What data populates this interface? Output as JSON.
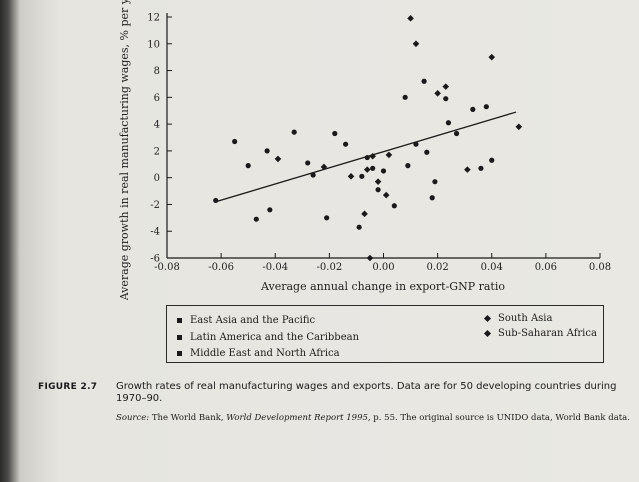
{
  "chart_data": {
    "type": "scatter",
    "title": "",
    "xlabel": "Average annual change in export-GNP ratio",
    "ylabel": "Average growth in real manufacturing wages, % per year",
    "xlim": [
      -0.08,
      0.08
    ],
    "ylim": [
      -6,
      12
    ],
    "x_ticks": [
      "-0.08",
      "-0.06",
      "-0.04",
      "-0.02",
      "0.00",
      "0.02",
      "0.04",
      "0.06",
      "0.08"
    ],
    "x_tick_values": [
      -0.08,
      -0.06,
      -0.04,
      -0.02,
      0.0,
      0.02,
      0.04,
      0.06,
      0.08
    ],
    "y_ticks": [
      "-6",
      "-4",
      "-2",
      "0",
      "2",
      "4",
      "6",
      "8",
      "10",
      "12"
    ],
    "y_tick_values": [
      -6,
      -4,
      -2,
      0,
      2,
      4,
      6,
      8,
      10,
      12
    ],
    "grid": false,
    "legend_position": "bottom",
    "series": [
      {
        "name": "East Asia and the Pacific",
        "marker": "circle",
        "points": [
          [
            -0.047,
            -3.1
          ],
          [
            -0.033,
            3.4
          ],
          [
            -0.021,
            -3.0
          ],
          [
            -0.009,
            -3.7
          ],
          [
            0.018,
            -1.5
          ],
          [
            0.019,
            -0.3
          ],
          [
            0.033,
            5.1
          ],
          [
            0.04,
            1.3
          ]
        ]
      },
      {
        "name": "Latin America and the Caribbean",
        "marker": "circle",
        "points": [
          [
            -0.055,
            2.7
          ],
          [
            -0.043,
            2.0
          ],
          [
            -0.028,
            1.1
          ],
          [
            -0.018,
            3.3
          ],
          [
            -0.014,
            2.5
          ],
          [
            -0.006,
            1.5
          ],
          [
            0.0,
            0.5
          ],
          [
            0.004,
            -2.1
          ],
          [
            0.008,
            6.0
          ],
          [
            0.012,
            2.5
          ],
          [
            0.016,
            1.9
          ],
          [
            0.023,
            5.9
          ],
          [
            0.027,
            3.3
          ],
          [
            0.038,
            5.3
          ]
        ]
      },
      {
        "name": "Middle East and North Africa",
        "marker": "circle",
        "points": [
          [
            -0.062,
            -1.7
          ],
          [
            -0.05,
            0.9
          ],
          [
            -0.042,
            -2.4
          ],
          [
            -0.026,
            0.2
          ],
          [
            -0.008,
            0.1
          ],
          [
            -0.004,
            0.7
          ],
          [
            -0.002,
            -0.9
          ],
          [
            0.009,
            0.9
          ],
          [
            0.015,
            7.2
          ],
          [
            0.024,
            4.1
          ],
          [
            0.036,
            0.7
          ]
        ]
      },
      {
        "name": "South Asia",
        "marker": "diamond",
        "points": [
          [
            -0.039,
            1.4
          ],
          [
            -0.022,
            0.8
          ],
          [
            -0.006,
            0.6
          ],
          [
            -0.002,
            -0.3
          ],
          [
            0.001,
            -1.3
          ],
          [
            0.01,
            11.9
          ],
          [
            0.012,
            10.0
          ],
          [
            0.02,
            6.3
          ],
          [
            0.023,
            6.8
          ],
          [
            0.031,
            0.6
          ],
          [
            0.05,
            3.8
          ],
          [
            0.04,
            9.0
          ]
        ]
      },
      {
        "name": "Sub-Saharan Africa",
        "marker": "diamond",
        "points": [
          [
            -0.012,
            0.1
          ],
          [
            -0.007,
            -2.7
          ],
          [
            -0.004,
            1.6
          ],
          [
            0.002,
            1.7
          ],
          [
            -0.005,
            -6.0
          ]
        ]
      }
    ],
    "trendline": {
      "x": [
        -0.062,
        0.049
      ],
      "y": [
        -1.8,
        4.9
      ]
    }
  },
  "legend": {
    "items": [
      {
        "label": "East Asia and the Pacific",
        "marker": "circle"
      },
      {
        "label": "Latin America and the Caribbean",
        "marker": "circle"
      },
      {
        "label": "Middle East and North Africa",
        "marker": "circle"
      },
      {
        "label": "South Asia",
        "marker": "diamond"
      },
      {
        "label": "Sub-Saharan Africa",
        "marker": "diamond"
      }
    ]
  },
  "caption": {
    "figure_label": "FIGURE 2.7",
    "text": "Growth rates of real manufacturing wages and exports. Data are for 50 developing countries during 1970–90."
  },
  "source": {
    "prefix": "Source:",
    "text": "The World Bank, ",
    "report": "World Development Report 1995,",
    "rest": " p. 55. The original source is UNIDO data, World Bank data."
  },
  "colors": {
    "ink": "#1a1a1a",
    "paper": "#e9e8e3"
  }
}
